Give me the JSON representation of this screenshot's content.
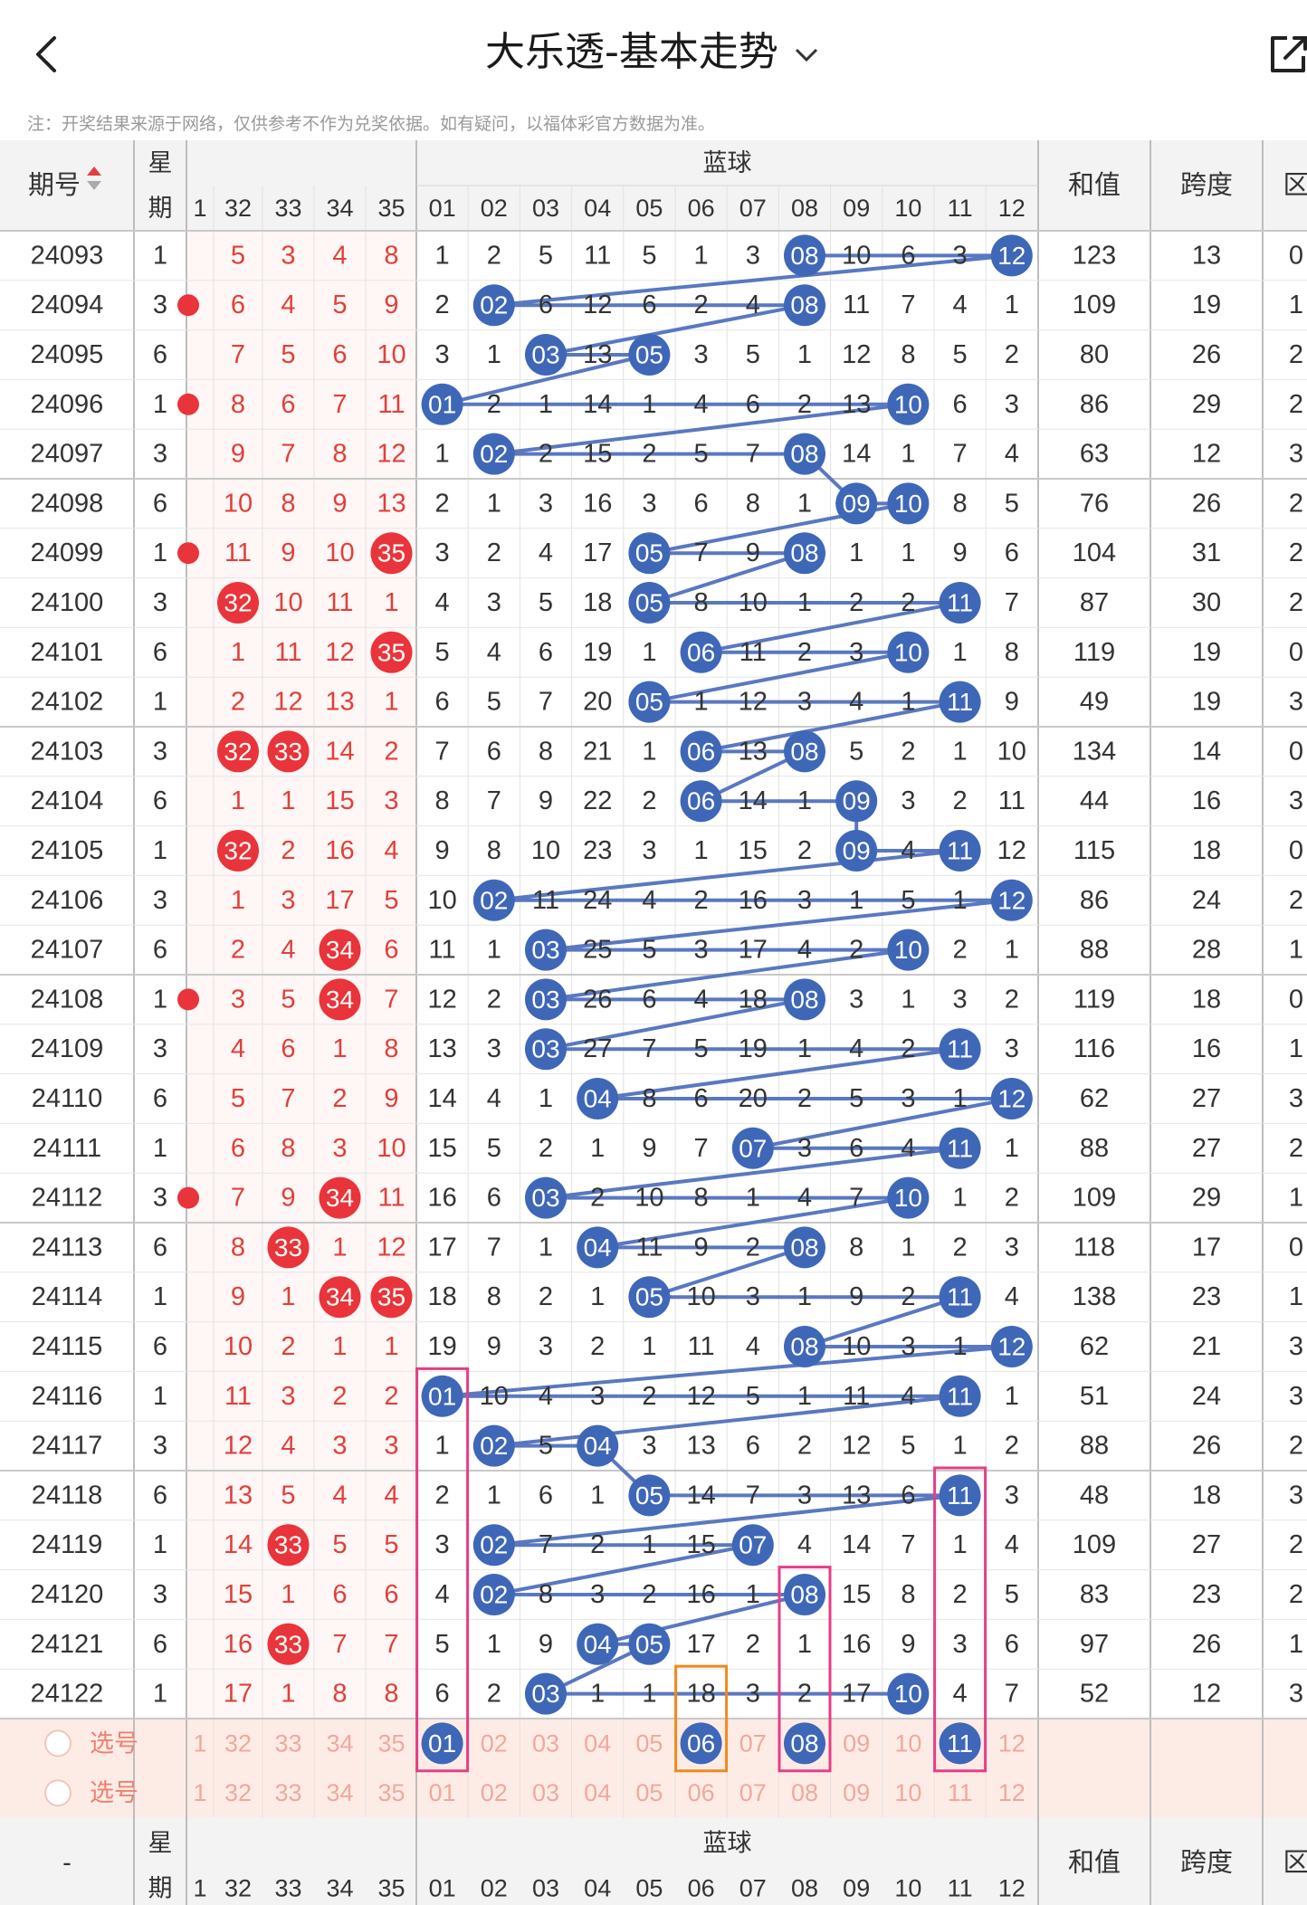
{
  "header": {
    "title": "大乐透-基本走势",
    "notice": "注：开奖结果来源于网络，仅供参考不作为兑奖依据。如有疑问，以福体彩官方数据为准。"
  },
  "table": {
    "col_period": "期号",
    "col_week_1": "星",
    "col_week_2": "期",
    "col_blue": "蓝球",
    "col_sum": "和值",
    "col_span": "跨度",
    "col_zone": "区",
    "red_headers": [
      "1",
      "32",
      "33",
      "34",
      "35"
    ],
    "blue_headers": [
      "01",
      "02",
      "03",
      "04",
      "05",
      "06",
      "07",
      "08",
      "09",
      "10",
      "11",
      "12"
    ],
    "select_label": "选号",
    "footer_dash": "-",
    "rows": [
      {
        "p": "24093",
        "w": "1",
        "r": [
          "",
          "5",
          "3",
          "4",
          "8"
        ],
        "rh": [],
        "b": [
          1,
          2,
          5,
          11,
          5,
          1,
          3,
          8,
          10,
          6,
          3,
          12
        ],
        "bh": [
          8,
          12
        ],
        "sum": "123",
        "span": "13",
        "z": "0"
      },
      {
        "p": "24094",
        "w": "3",
        "r": [
          "",
          "6",
          "4",
          "5",
          "9"
        ],
        "rh": [
          0
        ],
        "b": [
          2,
          2,
          6,
          12,
          6,
          2,
          4,
          8,
          11,
          7,
          4,
          1
        ],
        "bh": [
          2,
          8
        ],
        "sum": "109",
        "span": "19",
        "z": "1"
      },
      {
        "p": "24095",
        "w": "6",
        "r": [
          "",
          "7",
          "5",
          "6",
          "10"
        ],
        "rh": [],
        "b": [
          3,
          1,
          3,
          13,
          5,
          3,
          5,
          1,
          12,
          8,
          5,
          2
        ],
        "bh": [
          3,
          5
        ],
        "sum": "80",
        "span": "26",
        "z": "2"
      },
      {
        "p": "24096",
        "w": "1",
        "r": [
          "",
          "8",
          "6",
          "7",
          "11"
        ],
        "rh": [
          0
        ],
        "b": [
          1,
          2,
          1,
          14,
          1,
          4,
          6,
          2,
          13,
          10,
          6,
          3
        ],
        "bh": [
          1,
          10
        ],
        "sum": "86",
        "span": "29",
        "z": "2"
      },
      {
        "p": "24097",
        "w": "3",
        "r": [
          "",
          "9",
          "7",
          "8",
          "12"
        ],
        "rh": [],
        "b": [
          1,
          2,
          2,
          15,
          2,
          5,
          7,
          8,
          14,
          1,
          7,
          4
        ],
        "bh": [
          2,
          8
        ],
        "sum": "63",
        "span": "12",
        "z": "3"
      },
      {
        "p": "24098",
        "w": "6",
        "r": [
          "",
          "10",
          "8",
          "9",
          "13"
        ],
        "rh": [],
        "b": [
          2,
          1,
          3,
          16,
          3,
          6,
          8,
          1,
          9,
          10,
          8,
          5
        ],
        "bh": [
          9,
          10
        ],
        "sum": "76",
        "span": "26",
        "z": "2"
      },
      {
        "p": "24099",
        "w": "1",
        "r": [
          "",
          "11",
          "9",
          "10",
          "35"
        ],
        "rh": [
          0,
          4
        ],
        "b": [
          3,
          2,
          4,
          17,
          5,
          7,
          9,
          8,
          1,
          1,
          9,
          6
        ],
        "bh": [
          5,
          8
        ],
        "sum": "104",
        "span": "31",
        "z": "2"
      },
      {
        "p": "24100",
        "w": "3",
        "r": [
          "",
          "32",
          "10",
          "11",
          "1"
        ],
        "rh": [
          1
        ],
        "b": [
          4,
          3,
          5,
          18,
          5,
          8,
          10,
          1,
          2,
          2,
          11,
          7
        ],
        "bh": [
          5,
          11
        ],
        "sum": "87",
        "span": "30",
        "z": "2"
      },
      {
        "p": "24101",
        "w": "6",
        "r": [
          "",
          "1",
          "11",
          "12",
          "35"
        ],
        "rh": [
          4
        ],
        "b": [
          5,
          4,
          6,
          19,
          1,
          6,
          11,
          2,
          3,
          10,
          1,
          8
        ],
        "bh": [
          6,
          10
        ],
        "sum": "119",
        "span": "19",
        "z": "0"
      },
      {
        "p": "24102",
        "w": "1",
        "r": [
          "",
          "2",
          "12",
          "13",
          "1"
        ],
        "rh": [],
        "b": [
          6,
          5,
          7,
          20,
          5,
          1,
          12,
          3,
          4,
          1,
          11,
          9
        ],
        "bh": [
          5,
          11
        ],
        "sum": "49",
        "span": "19",
        "z": "3"
      },
      {
        "p": "24103",
        "w": "3",
        "r": [
          "",
          "32",
          "33",
          "14",
          "2"
        ],
        "rh": [
          1,
          2
        ],
        "b": [
          7,
          6,
          8,
          21,
          1,
          6,
          13,
          8,
          5,
          2,
          1,
          10
        ],
        "bh": [
          6,
          8
        ],
        "sum": "134",
        "span": "14",
        "z": "0"
      },
      {
        "p": "24104",
        "w": "6",
        "r": [
          "",
          "1",
          "1",
          "15",
          "3"
        ],
        "rh": [],
        "b": [
          8,
          7,
          9,
          22,
          2,
          6,
          14,
          1,
          9,
          3,
          2,
          11
        ],
        "bh": [
          6,
          9
        ],
        "sum": "44",
        "span": "16",
        "z": "3"
      },
      {
        "p": "24105",
        "w": "1",
        "r": [
          "",
          "32",
          "2",
          "16",
          "4"
        ],
        "rh": [
          1
        ],
        "b": [
          9,
          8,
          10,
          23,
          3,
          1,
          15,
          2,
          9,
          4,
          11,
          12
        ],
        "bh": [
          9,
          11
        ],
        "sum": "115",
        "span": "18",
        "z": "0"
      },
      {
        "p": "24106",
        "w": "3",
        "r": [
          "",
          "1",
          "3",
          "17",
          "5"
        ],
        "rh": [],
        "b": [
          10,
          2,
          11,
          24,
          4,
          2,
          16,
          3,
          1,
          5,
          1,
          12
        ],
        "bh": [
          2,
          12
        ],
        "sum": "86",
        "span": "24",
        "z": "2"
      },
      {
        "p": "24107",
        "w": "6",
        "r": [
          "",
          "2",
          "4",
          "34",
          "6"
        ],
        "rh": [
          3
        ],
        "b": [
          11,
          1,
          3,
          25,
          5,
          3,
          17,
          4,
          2,
          10,
          2,
          1
        ],
        "bh": [
          3,
          10
        ],
        "sum": "88",
        "span": "28",
        "z": "1"
      },
      {
        "p": "24108",
        "w": "1",
        "r": [
          "",
          "3",
          "5",
          "34",
          "7"
        ],
        "rh": [
          0,
          3
        ],
        "b": [
          12,
          2,
          3,
          26,
          6,
          4,
          18,
          8,
          3,
          1,
          3,
          2
        ],
        "bh": [
          3,
          8
        ],
        "sum": "119",
        "span": "18",
        "z": "0"
      },
      {
        "p": "24109",
        "w": "3",
        "r": [
          "",
          "4",
          "6",
          "1",
          "8"
        ],
        "rh": [],
        "b": [
          13,
          3,
          3,
          27,
          7,
          5,
          19,
          1,
          4,
          2,
          11,
          3
        ],
        "bh": [
          3,
          11
        ],
        "sum": "116",
        "span": "16",
        "z": "1"
      },
      {
        "p": "24110",
        "w": "6",
        "r": [
          "",
          "5",
          "7",
          "2",
          "9"
        ],
        "rh": [],
        "b": [
          14,
          4,
          1,
          4,
          8,
          6,
          20,
          2,
          5,
          3,
          1,
          12
        ],
        "bh": [
          4,
          12
        ],
        "sum": "62",
        "span": "27",
        "z": "3"
      },
      {
        "p": "24111",
        "w": "1",
        "r": [
          "",
          "6",
          "8",
          "3",
          "10"
        ],
        "rh": [],
        "b": [
          15,
          5,
          2,
          1,
          9,
          7,
          7,
          3,
          6,
          4,
          11,
          1
        ],
        "bh": [
          7,
          11
        ],
        "sum": "88",
        "span": "27",
        "z": "2"
      },
      {
        "p": "24112",
        "w": "3",
        "r": [
          "",
          "7",
          "9",
          "34",
          "11"
        ],
        "rh": [
          0,
          3
        ],
        "b": [
          16,
          6,
          3,
          2,
          10,
          8,
          1,
          4,
          7,
          10,
          1,
          2
        ],
        "bh": [
          3,
          10
        ],
        "sum": "109",
        "span": "29",
        "z": "1"
      },
      {
        "p": "24113",
        "w": "6",
        "r": [
          "",
          "8",
          "33",
          "1",
          "12"
        ],
        "rh": [
          2
        ],
        "b": [
          17,
          7,
          1,
          4,
          11,
          9,
          2,
          8,
          8,
          1,
          2,
          3
        ],
        "bh": [
          4,
          8
        ],
        "sum": "118",
        "span": "17",
        "z": "0"
      },
      {
        "p": "24114",
        "w": "1",
        "r": [
          "",
          "9",
          "1",
          "34",
          "35"
        ],
        "rh": [
          3,
          4
        ],
        "b": [
          18,
          8,
          2,
          1,
          5,
          10,
          3,
          1,
          9,
          2,
          11,
          4
        ],
        "bh": [
          5,
          11
        ],
        "sum": "138",
        "span": "23",
        "z": "1"
      },
      {
        "p": "24115",
        "w": "6",
        "r": [
          "",
          "10",
          "2",
          "1",
          "1"
        ],
        "rh": [],
        "b": [
          19,
          9,
          3,
          2,
          1,
          11,
          4,
          8,
          10,
          3,
          1,
          12
        ],
        "bh": [
          8,
          12
        ],
        "sum": "62",
        "span": "21",
        "z": "3"
      },
      {
        "p": "24116",
        "w": "1",
        "r": [
          "",
          "11",
          "3",
          "2",
          "2"
        ],
        "rh": [],
        "b": [
          1,
          10,
          4,
          3,
          2,
          12,
          5,
          1,
          11,
          4,
          11,
          1
        ],
        "bh": [
          1,
          11
        ],
        "sum": "51",
        "span": "24",
        "z": "3"
      },
      {
        "p": "24117",
        "w": "3",
        "r": [
          "",
          "12",
          "4",
          "3",
          "3"
        ],
        "rh": [],
        "b": [
          1,
          2,
          5,
          4,
          3,
          13,
          6,
          2,
          12,
          5,
          1,
          2
        ],
        "bh": [
          2,
          4
        ],
        "sum": "88",
        "span": "26",
        "z": "2"
      },
      {
        "p": "24118",
        "w": "6",
        "r": [
          "",
          "13",
          "5",
          "4",
          "4"
        ],
        "rh": [],
        "b": [
          2,
          1,
          6,
          1,
          5,
          14,
          7,
          3,
          13,
          6,
          11,
          3
        ],
        "bh": [
          5,
          11
        ],
        "sum": "48",
        "span": "18",
        "z": "3"
      },
      {
        "p": "24119",
        "w": "1",
        "r": [
          "",
          "14",
          "33",
          "5",
          "5"
        ],
        "rh": [
          2
        ],
        "b": [
          3,
          2,
          7,
          2,
          1,
          15,
          7,
          4,
          14,
          7,
          1,
          4
        ],
        "bh": [
          2,
          7
        ],
        "sum": "109",
        "span": "27",
        "z": "2"
      },
      {
        "p": "24120",
        "w": "3",
        "r": [
          "",
          "15",
          "1",
          "6",
          "6"
        ],
        "rh": [],
        "b": [
          4,
          2,
          8,
          3,
          2,
          16,
          1,
          8,
          15,
          8,
          2,
          5
        ],
        "bh": [
          2,
          8
        ],
        "sum": "83",
        "span": "23",
        "z": "2"
      },
      {
        "p": "24121",
        "w": "6",
        "r": [
          "",
          "16",
          "33",
          "7",
          "7"
        ],
        "rh": [
          2
        ],
        "b": [
          5,
          1,
          9,
          4,
          5,
          17,
          2,
          1,
          16,
          9,
          3,
          6
        ],
        "bh": [
          4,
          5
        ],
        "sum": "97",
        "span": "26",
        "z": "1"
      },
      {
        "p": "24122",
        "w": "1",
        "r": [
          "",
          "17",
          "1",
          "8",
          "8"
        ],
        "rh": [],
        "b": [
          6,
          2,
          3,
          1,
          1,
          18,
          3,
          2,
          17,
          10,
          4,
          7
        ],
        "bh": [
          3,
          10
        ],
        "sum": "52",
        "span": "12",
        "z": "3"
      }
    ]
  }
}
